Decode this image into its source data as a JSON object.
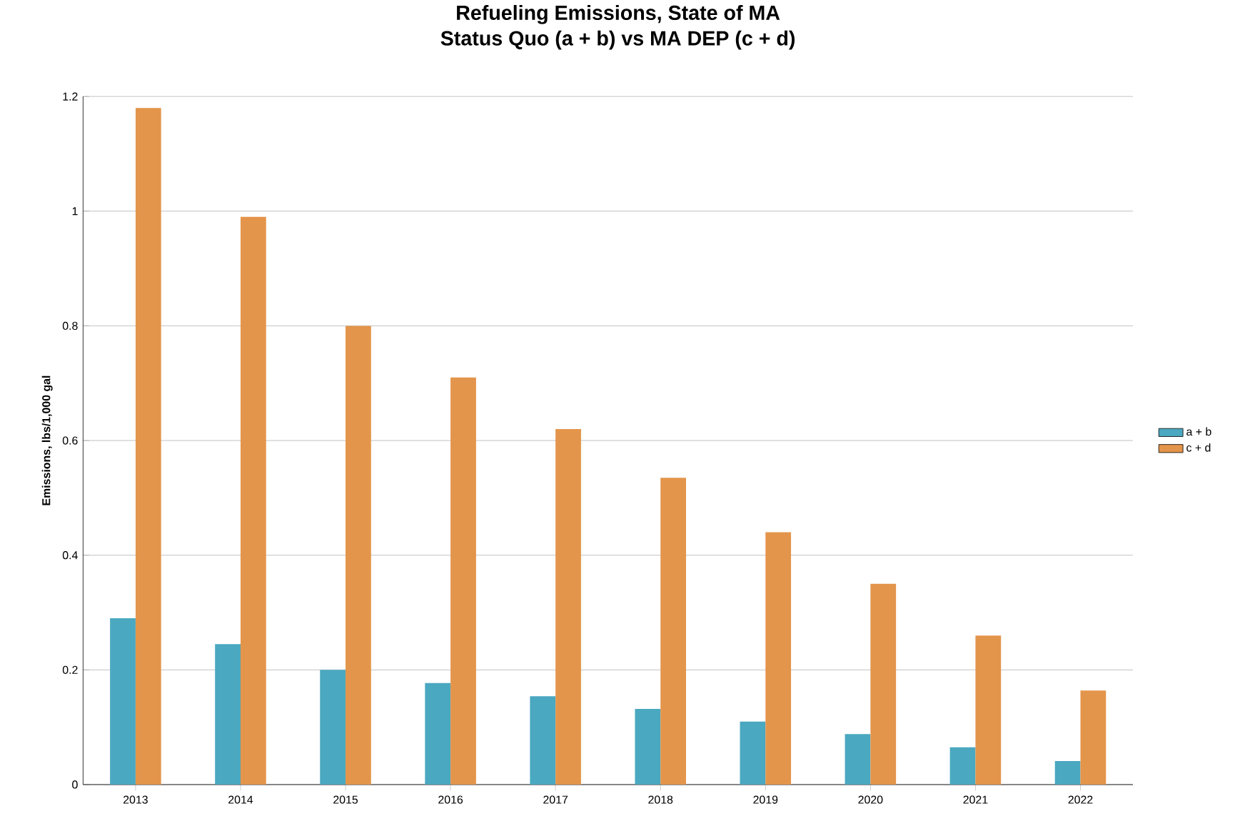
{
  "chart_data": {
    "type": "bar",
    "title": "Refueling Emissions, State of MA",
    "subtitle": "Status Quo (a + b)  vs MA DEP (c + d)",
    "ylabel": "Emissions, lbs/1,000 gal",
    "categories": [
      "2013",
      "2014",
      "2015",
      "2016",
      "2017",
      "2018",
      "2019",
      "2020",
      "2021",
      "2022"
    ],
    "series": [
      {
        "name": "a + b",
        "color": "#4aa8c0",
        "values": [
          0.29,
          0.245,
          0.2,
          0.177,
          0.154,
          0.132,
          0.11,
          0.088,
          0.065,
          0.041
        ]
      },
      {
        "name": "c + d",
        "color": "#e3954b",
        "values": [
          1.18,
          0.99,
          0.8,
          0.71,
          0.62,
          0.535,
          0.44,
          0.35,
          0.26,
          0.164
        ]
      }
    ],
    "ylim": [
      0,
      1.2
    ],
    "yticks": [
      0,
      0.2,
      0.4,
      0.6,
      0.8,
      1,
      1.2
    ],
    "grid": "y",
    "legend": "right"
  }
}
